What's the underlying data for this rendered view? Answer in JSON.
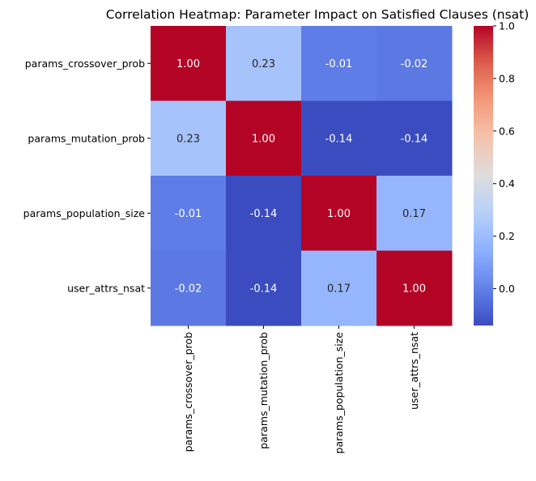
{
  "chart_data": {
    "type": "heatmap",
    "title": "Correlation Heatmap: Parameter Impact on Satisfied Clauses (nsat)",
    "rows": [
      "params_crossover_prob",
      "params_mutation_prob",
      "params_population_size",
      "user_attrs_nsat"
    ],
    "columns": [
      "params_crossover_prob",
      "params_mutation_prob",
      "params_population_size",
      "user_attrs_nsat"
    ],
    "values": [
      [
        1.0,
        0.23,
        -0.01,
        -0.02
      ],
      [
        0.23,
        1.0,
        -0.14,
        -0.14
      ],
      [
        -0.01,
        -0.14,
        1.0,
        0.17
      ],
      [
        -0.02,
        -0.14,
        0.17,
        1.0
      ]
    ],
    "annotations": [
      [
        "1.00",
        "0.23",
        "-0.01",
        "-0.02"
      ],
      [
        "0.23",
        "1.00",
        "-0.14",
        "-0.14"
      ],
      [
        "-0.01",
        "-0.14",
        "1.00",
        "0.17"
      ],
      [
        "-0.02",
        "-0.14",
        "0.17",
        "1.00"
      ]
    ],
    "colormap": "coolwarm",
    "color_range": [
      -0.14,
      1.0
    ],
    "colorbar": {
      "ticks": [
        0.0,
        0.2,
        0.4,
        0.6,
        0.8,
        1.0
      ],
      "tick_labels": [
        "0.0",
        "0.2",
        "0.4",
        "0.6",
        "0.8",
        "1.0"
      ]
    },
    "grid": false
  }
}
